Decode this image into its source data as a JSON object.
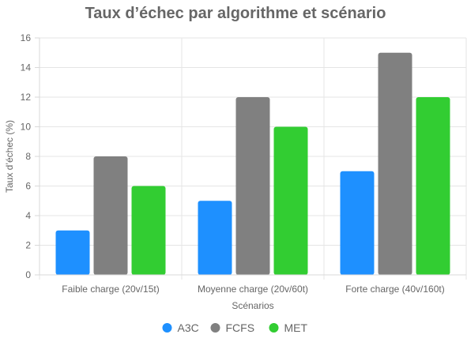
{
  "chart_data": {
    "type": "bar",
    "title": "Taux d’échec par algorithme et scénario",
    "xlabel": "Scénarios",
    "ylabel": "Taux d’échec (%)",
    "categories": [
      "Faible charge (20v/15t)",
      "Moyenne charge (20v/60t)",
      "Forte charge (40v/160t)"
    ],
    "series": [
      {
        "name": "A3C",
        "color": "#1e90ff",
        "values": [
          3,
          5,
          7
        ]
      },
      {
        "name": "FCFS",
        "color": "#808080",
        "values": [
          8,
          12,
          15
        ]
      },
      {
        "name": "MET",
        "color": "#32cd32",
        "values": [
          6,
          10,
          12
        ]
      }
    ],
    "ylim": [
      0,
      16
    ],
    "yticks": [
      0,
      2,
      4,
      6,
      8,
      10,
      12,
      14,
      16
    ],
    "grid": true,
    "legend_position": "bottom"
  }
}
